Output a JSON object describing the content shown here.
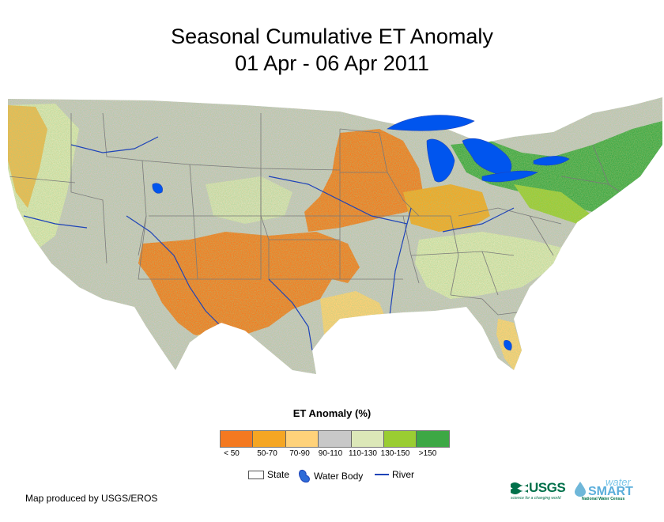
{
  "title": {
    "line1": "Seasonal Cumulative ET Anomaly",
    "line2": "01 Apr - 06 Apr 2011"
  },
  "legend": {
    "title": "ET Anomaly (%)",
    "classes": [
      {
        "label": "< 50",
        "color": "#F47920"
      },
      {
        "label": "50-70",
        "color": "#F5A623"
      },
      {
        "label": "70-90",
        "color": "#FFD27A"
      },
      {
        "label": "90-110",
        "color": "#C8C8C8"
      },
      {
        "label": "110-130",
        "color": "#DCE8B8"
      },
      {
        "label": "130-150",
        "color": "#9ACD32"
      },
      {
        "label": ">150",
        "color": "#3DA845"
      }
    ],
    "reference": {
      "state": "State",
      "water": "Water Body",
      "river": "River"
    }
  },
  "colors": {
    "water": "#0055EE",
    "river": "#1F44B8",
    "state_line": "#7A7A7A"
  },
  "footer": "Map produced by USGS/EROS",
  "logos": {
    "usgs": "USGS",
    "usgs_tag": "science for a changing world",
    "water": "water",
    "smart": "SMART",
    "census": "National Water Census"
  }
}
